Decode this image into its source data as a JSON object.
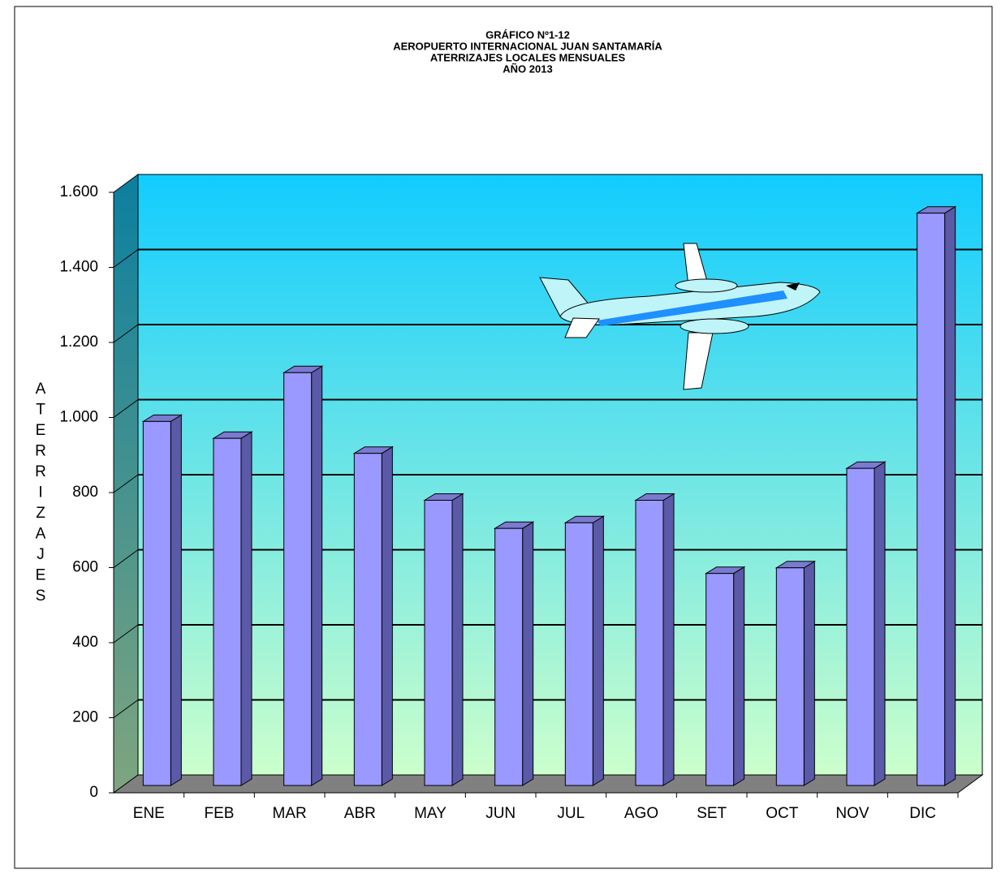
{
  "chart_data": {
    "type": "bar3d",
    "title": [
      "GRÁFICO Nº1-12",
      "AEROPUERTO INTERNACIONAL JUAN SANTAMARÍA",
      "ATERRIZAJES LOCALES MENSUALES",
      "AÑO 2013"
    ],
    "y_label": [
      "A",
      "T",
      "E",
      "R",
      "R",
      "I",
      "Z",
      "A",
      "J",
      "E",
      "S"
    ],
    "categories": [
      "ENE",
      "FEB",
      "MAR",
      "ABR",
      "MAY",
      "JUN",
      "JUL",
      "AGO",
      "SET",
      "OCT",
      "NOV",
      "DIC"
    ],
    "values": [
      970,
      925,
      1100,
      885,
      760,
      685,
      700,
      760,
      565,
      580,
      845,
      1525
    ],
    "color": "#9999ff",
    "ylim": [
      0,
      1600
    ],
    "yticks": [
      0,
      200,
      400,
      600,
      800,
      {
        "value": 1000,
        "label": "1.000"
      },
      {
        "value": 1200,
        "label": "1.200"
      },
      {
        "value": 1400,
        "label": "1.400"
      },
      {
        "value": 1600,
        "label": "1.600"
      }
    ],
    "grid": true
  }
}
